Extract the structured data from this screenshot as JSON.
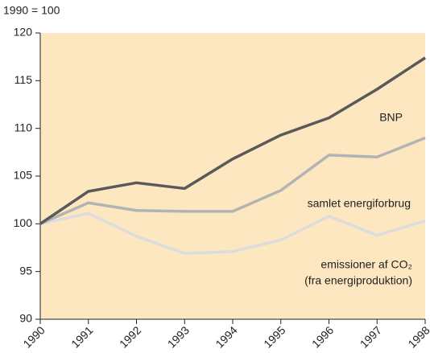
{
  "chart_data": {
    "type": "line",
    "ylabel": "1990 = 100",
    "x": [
      1990,
      1991,
      1992,
      1993,
      1994,
      1995,
      1996,
      1997,
      1998
    ],
    "xlim": [
      1990,
      1998
    ],
    "xticks": [
      1990,
      1991,
      1992,
      1993,
      1994,
      1995,
      1996,
      1997,
      1998
    ],
    "ylim": [
      90,
      120
    ],
    "yticks": [
      90,
      95,
      100,
      105,
      110,
      115,
      120
    ],
    "series": [
      {
        "name": "BNP",
        "color": "#595959",
        "values": [
          100,
          103.4,
          104.3,
          103.7,
          106.8,
          109.3,
          111.1,
          114.1,
          117.4
        ]
      },
      {
        "name": "samlet energiforbrug",
        "color": "#b3b3b3",
        "values": [
          100,
          102.2,
          101.4,
          101.3,
          101.3,
          103.5,
          107.2,
          107.0,
          109.0
        ]
      },
      {
        "name": "emissioner af CO₂",
        "color": "#dcdcdc",
        "values": [
          100,
          101.1,
          98.7,
          96.9,
          97.1,
          98.3,
          100.8,
          98.8,
          100.3
        ]
      }
    ],
    "annotations": [
      "(fra energiproduktion)"
    ],
    "background": "#fde7c1"
  }
}
